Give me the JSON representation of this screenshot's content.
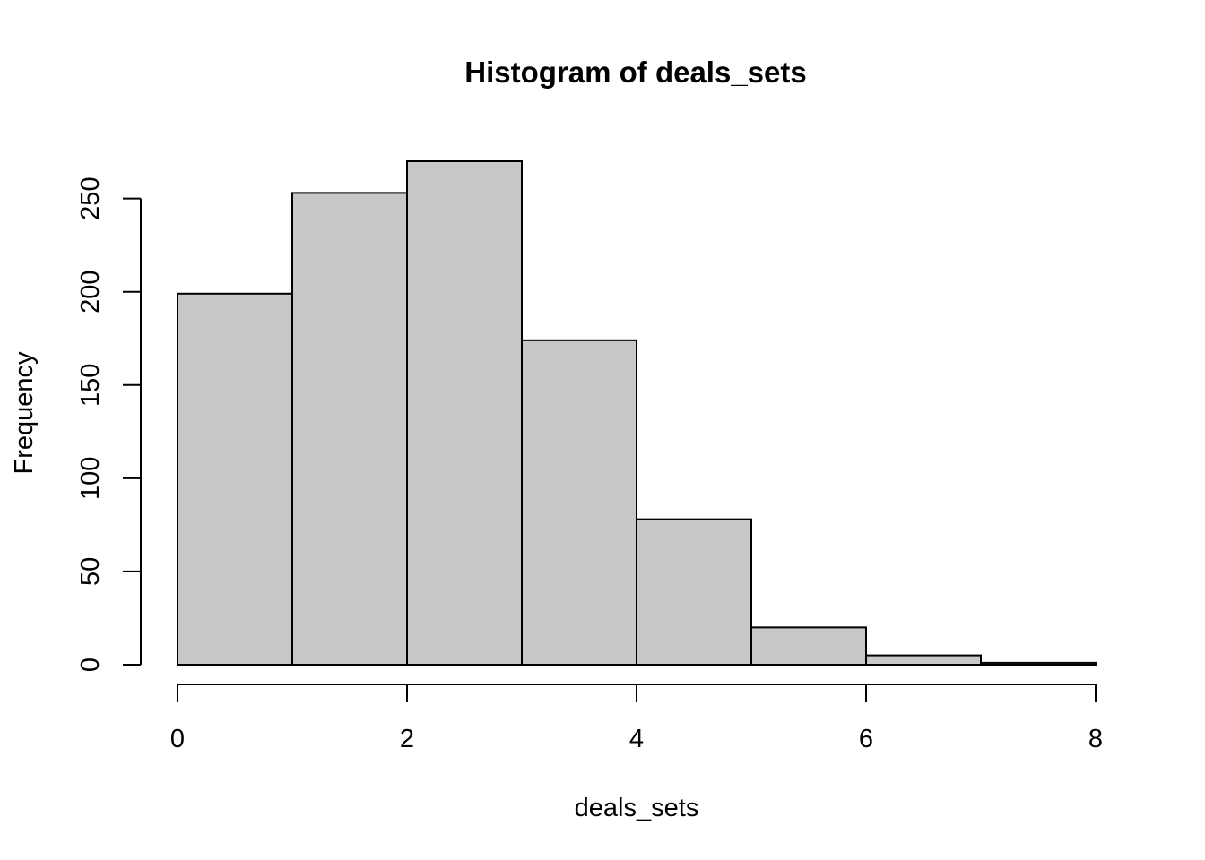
{
  "chart_data": {
    "type": "bar",
    "title": "Histogram of deals_sets",
    "xlabel": "deals_sets",
    "ylabel": "Frequency",
    "bins": [
      {
        "x0": 0,
        "x1": 1,
        "count": 199
      },
      {
        "x0": 1,
        "x1": 2,
        "count": 253
      },
      {
        "x0": 2,
        "x1": 3,
        "count": 270
      },
      {
        "x0": 3,
        "x1": 4,
        "count": 174
      },
      {
        "x0": 4,
        "x1": 5,
        "count": 78
      },
      {
        "x0": 5,
        "x1": 6,
        "count": 20
      },
      {
        "x0": 6,
        "x1": 7,
        "count": 5
      },
      {
        "x0": 7,
        "x1": 8,
        "count": 1
      }
    ],
    "xlim": [
      0,
      8
    ],
    "ylim": [
      0,
      270
    ],
    "xticks": [
      0,
      2,
      4,
      6,
      8
    ],
    "yticks": [
      0,
      50,
      100,
      150,
      200,
      250
    ],
    "grid": false,
    "bar_color": "#c8c8c8",
    "edge_color": "#000000"
  }
}
